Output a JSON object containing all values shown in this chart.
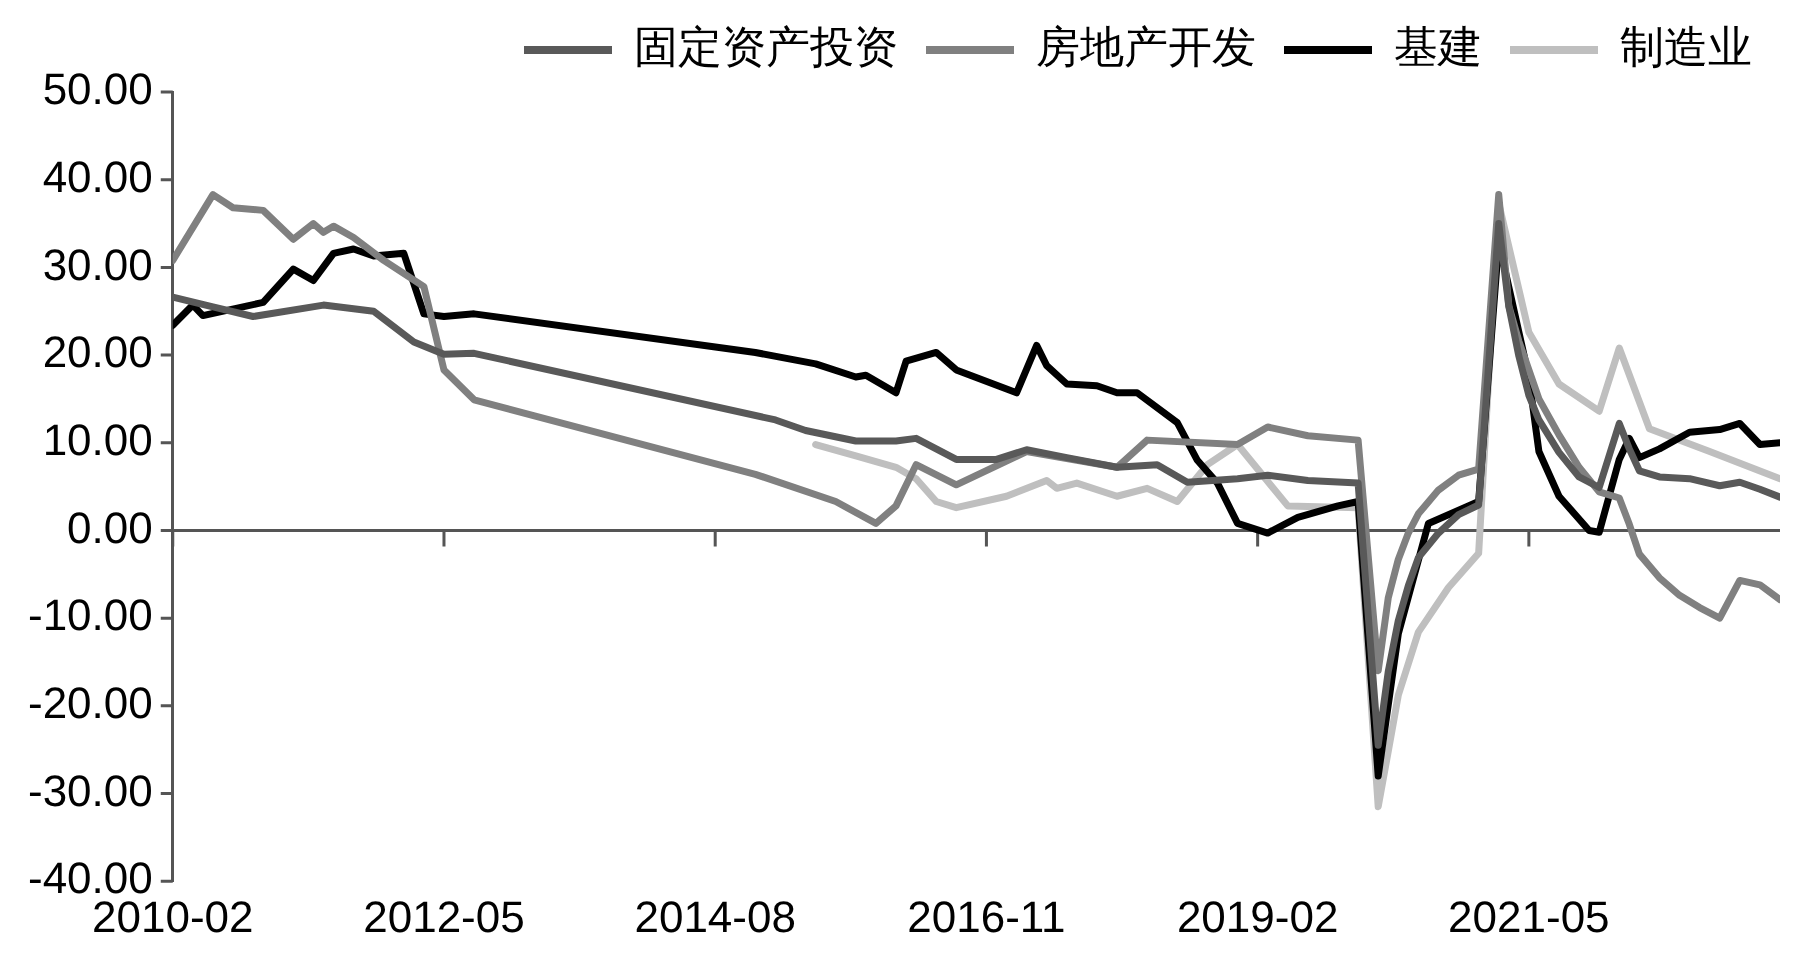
{
  "chart_data": {
    "type": "line",
    "legend": "top",
    "ref_lines": [
      {
        "axis": "y",
        "value": 0,
        "color": "#555555"
      }
    ],
    "marker": "none",
    "grid": false,
    "xlim": [
      "2010-02",
      "2023-06"
    ],
    "xticks": [
      "2010-02",
      "2012-05",
      "2014-08",
      "2016-11",
      "2019-02",
      "2021-05"
    ],
    "ylim": [
      -40,
      50
    ],
    "yticks": [
      {
        "value": -40,
        "label": "-40.00"
      },
      {
        "value": -30,
        "label": "-30.00"
      },
      {
        "value": -20,
        "label": "-20.00"
      },
      {
        "value": -10,
        "label": "-10.00"
      },
      {
        "value": 0,
        "label": "0.00"
      },
      {
        "value": 10,
        "label": "10.00"
      },
      {
        "value": 20,
        "label": "20.00"
      },
      {
        "value": 30,
        "label": "30.00"
      },
      {
        "value": 40,
        "label": "40.00"
      },
      {
        "value": 50,
        "label": "50.00"
      }
    ],
    "series": [
      {
        "name": "固定资产投资",
        "color": "#595959",
        "x": [
          "2010-02",
          "2010-06",
          "2010-10",
          "2011-05",
          "2011-10",
          "2012-02",
          "2012-05",
          "2012-08",
          "2015-02",
          "2015-05",
          "2015-10",
          "2016-02",
          "2016-04",
          "2016-08",
          "2016-12",
          "2017-03",
          "2017-07",
          "2017-12",
          "2018-04",
          "2018-07",
          "2018-12",
          "2019-03",
          "2019-07",
          "2019-12",
          "2020-02",
          "2020-03",
          "2020-04",
          "2020-05",
          "2020-06",
          "2020-08",
          "2020-10",
          "2020-12",
          "2021-02",
          "2021-03",
          "2021-04",
          "2021-05",
          "2021-06",
          "2021-08",
          "2021-10",
          "2021-12",
          "2022-02",
          "2022-03",
          "2022-04",
          "2022-06",
          "2022-09",
          "2022-12",
          "2023-02",
          "2023-04",
          "2023-06"
        ],
        "values": [
          26.6,
          25.5,
          24.4,
          25.7,
          25.0,
          21.5,
          20.1,
          20.2,
          12.6,
          11.4,
          10.2,
          10.2,
          10.5,
          8.1,
          8.1,
          9.2,
          8.3,
          7.2,
          7.5,
          5.5,
          5.9,
          6.3,
          5.7,
          5.4,
          -24.5,
          -16.1,
          -10.3,
          -6.3,
          -3.1,
          -0.3,
          1.8,
          2.9,
          35.0,
          25.6,
          19.9,
          15.4,
          12.6,
          8.9,
          6.1,
          4.9,
          12.2,
          9.3,
          6.8,
          6.1,
          5.9,
          5.1,
          5.5,
          4.7,
          3.8
        ]
      },
      {
        "name": "房地产开发",
        "color": "#808080",
        "x": [
          "2010-02",
          "2010-06",
          "2010-08",
          "2010-11",
          "2011-02",
          "2011-04",
          "2011-05",
          "2011-06",
          "2011-08",
          "2011-11",
          "2012-03",
          "2012-05",
          "2012-08",
          "2014-12",
          "2015-08",
          "2015-12",
          "2016-02",
          "2016-04",
          "2016-08",
          "2017-03",
          "2017-07",
          "2017-12",
          "2018-03",
          "2018-12",
          "2019-03",
          "2019-07",
          "2019-12",
          "2020-02",
          "2020-03",
          "2020-04",
          "2020-05",
          "2020-06",
          "2020-08",
          "2020-10",
          "2020-12",
          "2021-02",
          "2021-03",
          "2021-04",
          "2021-05",
          "2021-06",
          "2021-08",
          "2021-10",
          "2021-12",
          "2022-02",
          "2022-03",
          "2022-04",
          "2022-06",
          "2022-08",
          "2022-10",
          "2022-12",
          "2023-02",
          "2023-04",
          "2023-06"
        ],
        "values": [
          30.8,
          38.3,
          36.8,
          36.5,
          33.2,
          35.0,
          34.0,
          34.7,
          33.4,
          30.8,
          27.8,
          18.3,
          14.9,
          6.4,
          3.3,
          0.8,
          2.8,
          7.5,
          5.2,
          9.0,
          8.2,
          7.2,
          10.3,
          9.8,
          11.8,
          10.8,
          10.3,
          -16.0,
          -7.7,
          -3.3,
          -0.3,
          1.9,
          4.6,
          6.3,
          7.0,
          38.3,
          25.6,
          21.6,
          18.3,
          15.0,
          10.9,
          7.2,
          4.4,
          3.7,
          0.7,
          -2.7,
          -5.4,
          -7.4,
          -8.8,
          -10.0,
          -5.7,
          -6.2,
          -7.9
        ]
      },
      {
        "name": "基建",
        "color": "#000000",
        "x": [
          "2010-02",
          "2010-04",
          "2010-05",
          "2010-11",
          "2011-02",
          "2011-04",
          "2011-06",
          "2011-08",
          "2011-10",
          "2012-01",
          "2012-03",
          "2012-05",
          "2012-08",
          "2014-12",
          "2015-06",
          "2015-10",
          "2015-11",
          "2016-02",
          "2016-03",
          "2016-06",
          "2016-08",
          "2017-02",
          "2017-04",
          "2017-05",
          "2017-07",
          "2017-10",
          "2017-12",
          "2018-02",
          "2018-06",
          "2018-08",
          "2018-10",
          "2018-12",
          "2019-03",
          "2019-06",
          "2019-10",
          "2019-12",
          "2020-02",
          "2020-04",
          "2020-07",
          "2020-12",
          "2021-02",
          "2021-05",
          "2021-06",
          "2021-08",
          "2021-11",
          "2021-12",
          "2022-02",
          "2022-03",
          "2022-04",
          "2022-06",
          "2022-09",
          "2022-12",
          "2023-02",
          "2023-04",
          "2023-06"
        ],
        "values": [
          23.4,
          25.7,
          24.5,
          26.0,
          29.8,
          28.5,
          31.6,
          32.1,
          31.3,
          31.6,
          24.7,
          24.4,
          24.7,
          20.3,
          19.0,
          17.5,
          17.7,
          15.7,
          19.3,
          20.3,
          18.3,
          15.7,
          21.1,
          18.8,
          16.7,
          16.5,
          15.7,
          15.7,
          12.3,
          8.0,
          5.4,
          0.8,
          -0.3,
          1.5,
          2.8,
          3.3,
          -28.0,
          -11.8,
          0.8,
          3.3,
          32.9,
          17.5,
          9.0,
          3.9,
          0.0,
          -0.2,
          8.1,
          10.5,
          8.3,
          9.3,
          11.2,
          11.5,
          12.2,
          9.8,
          10.0
        ]
      },
      {
        "name": "制造业",
        "color": "#bfbfbf",
        "x": [
          "2015-06",
          "2015-10",
          "2016-02",
          "2016-04",
          "2016-06",
          "2016-08",
          "2017-01",
          "2017-05",
          "2017-06",
          "2017-08",
          "2017-12",
          "2018-03",
          "2018-06",
          "2018-09",
          "2018-12",
          "2019-05",
          "2019-12",
          "2020-02",
          "2020-03",
          "2020-04",
          "2020-06",
          "2020-09",
          "2020-12",
          "2021-02",
          "2021-05",
          "2021-08",
          "2021-12",
          "2022-02",
          "2022-05",
          "2022-11",
          "2023-06"
        ],
        "values": [
          9.8,
          8.5,
          7.2,
          5.9,
          3.3,
          2.6,
          3.9,
          5.7,
          4.8,
          5.4,
          3.9,
          4.8,
          3.3,
          7.5,
          9.8,
          2.8,
          2.6,
          -31.5,
          -25.2,
          -18.8,
          -11.6,
          -6.5,
          -2.6,
          37.3,
          22.6,
          16.7,
          13.6,
          20.8,
          11.6,
          9.0,
          5.9
        ]
      }
    ]
  }
}
